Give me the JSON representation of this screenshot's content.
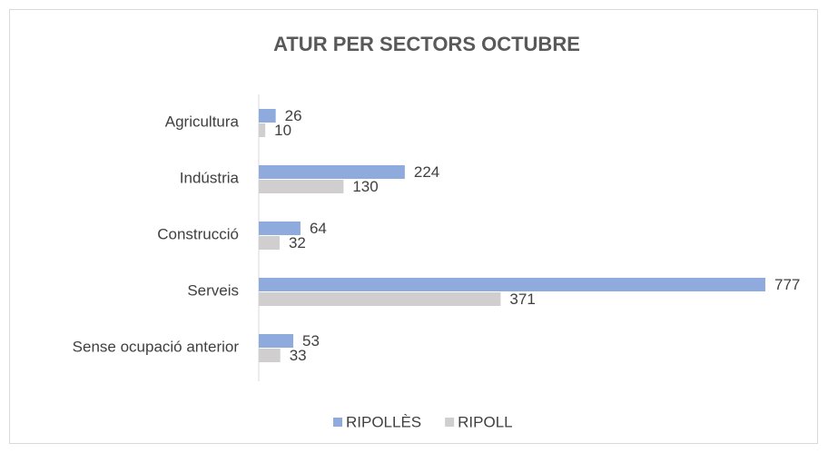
{
  "chart_data": {
    "type": "bar",
    "orientation": "horizontal",
    "title": "ATUR PER SECTORS OCTUBRE",
    "categories": [
      "Agricultura",
      "Indústria",
      "Construcció",
      "Serveis",
      "Sense ocupació anterior"
    ],
    "series": [
      {
        "name": "RIPOLLÈS",
        "color": "#8faadc",
        "values": [
          26,
          224,
          64,
          777,
          53
        ]
      },
      {
        "name": "RIPOLL",
        "color": "#d0cece",
        "values": [
          10,
          130,
          32,
          371,
          33
        ]
      }
    ],
    "legend": "bottom"
  }
}
